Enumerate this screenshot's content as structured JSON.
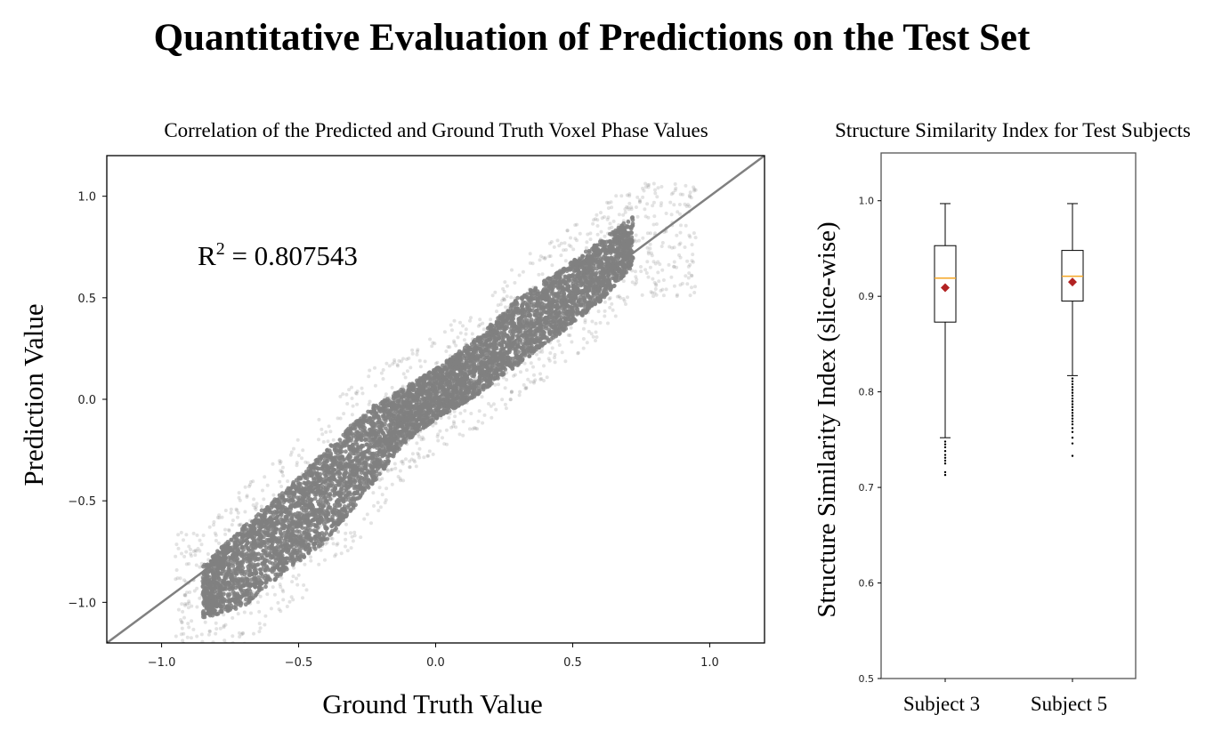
{
  "figure": {
    "title": "Quantitative Evaluation of Predictions on the Test Set"
  },
  "scatter": {
    "title": "Correlation of the Predicted and Ground Truth Voxel Phase Values",
    "annotation_prefix": "R",
    "annotation_sup": "2",
    "annotation_value": " = 0.807543",
    "xlabel": "Ground Truth Value",
    "ylabel": "Prediction Value",
    "point_color": "#808080",
    "line_color": "#808080"
  },
  "boxplot": {
    "title": "Structure Similarity Index for Test Subjects",
    "ylabel": "Structure Similarity Index (slice-wise)",
    "median_color": "#f5a623",
    "mean_color": "#b22222"
  },
  "chart_data": [
    {
      "type": "scatter",
      "title": "Correlation of the Predicted and Ground Truth Voxel Phase Values",
      "xlabel": "Ground Truth Value",
      "ylabel": "Prediction Value",
      "xlim": [
        -1.2,
        1.2
      ],
      "ylim": [
        -1.2,
        1.2
      ],
      "xticks": [
        -1.0,
        -0.5,
        0.0,
        0.5,
        1.0
      ],
      "xtick_labels": [
        "−1.0",
        "−0.5",
        "0.0",
        "0.5",
        "1.0"
      ],
      "yticks": [
        1.0,
        0.5,
        0.0,
        -0.5,
        -1.0
      ],
      "ytick_labels": [
        "1.0",
        "0.5",
        "0.0",
        "−0.5",
        "−1.0"
      ],
      "r_squared": 0.807543,
      "reference_line": {
        "x": [
          -1.2,
          1.2
        ],
        "y": [
          -1.2,
          1.2
        ]
      },
      "density_band": [
        {
          "x": -0.85,
          "y_low": -1.08,
          "y_high": -0.82
        },
        {
          "x": -0.7,
          "y_low": -1.02,
          "y_high": -0.62
        },
        {
          "x": -0.55,
          "y_low": -0.85,
          "y_high": -0.45
        },
        {
          "x": -0.4,
          "y_low": -0.7,
          "y_high": -0.25
        },
        {
          "x": -0.25,
          "y_low": -0.45,
          "y_high": -0.05
        },
        {
          "x": -0.1,
          "y_low": -0.2,
          "y_high": 0.07
        },
        {
          "x": 0.0,
          "y_low": -0.1,
          "y_high": 0.15
        },
        {
          "x": 0.15,
          "y_low": 0.02,
          "y_high": 0.3
        },
        {
          "x": 0.3,
          "y_low": 0.17,
          "y_high": 0.5
        },
        {
          "x": 0.45,
          "y_low": 0.32,
          "y_high": 0.63
        },
        {
          "x": 0.6,
          "y_low": 0.48,
          "y_high": 0.78
        },
        {
          "x": 0.72,
          "y_low": 0.66,
          "y_high": 0.9
        }
      ]
    },
    {
      "type": "box",
      "title": "Structure Similarity Index for Test Subjects",
      "ylabel": "Structure Similarity Index (slice-wise)",
      "ylim": [
        0.5,
        1.05
      ],
      "yticks": [
        1.0,
        0.9,
        0.8,
        0.7,
        0.6,
        0.5
      ],
      "ytick_labels": [
        "1.0",
        "0.9",
        "0.8",
        "0.7",
        "0.6",
        "0.5"
      ],
      "categories": [
        "Subject 3",
        "Subject 5"
      ],
      "boxes": [
        {
          "name": "Subject 3",
          "whisker_low": 0.752,
          "q1": 0.873,
          "median": 0.919,
          "q3": 0.953,
          "whisker_high": 0.997,
          "mean": 0.909,
          "outliers": [
            0.748,
            0.745,
            0.742,
            0.738,
            0.734,
            0.731,
            0.728,
            0.725,
            0.716,
            0.713
          ]
        },
        {
          "name": "Subject 5",
          "whisker_low": 0.817,
          "q1": 0.895,
          "median": 0.921,
          "q3": 0.948,
          "whisker_high": 0.997,
          "mean": 0.915,
          "outliers": [
            0.814,
            0.811,
            0.808,
            0.805,
            0.802,
            0.799,
            0.796,
            0.793,
            0.79,
            0.787,
            0.784,
            0.781,
            0.778,
            0.775,
            0.772,
            0.769,
            0.766,
            0.762,
            0.758,
            0.752,
            0.746,
            0.733
          ]
        }
      ]
    }
  ]
}
